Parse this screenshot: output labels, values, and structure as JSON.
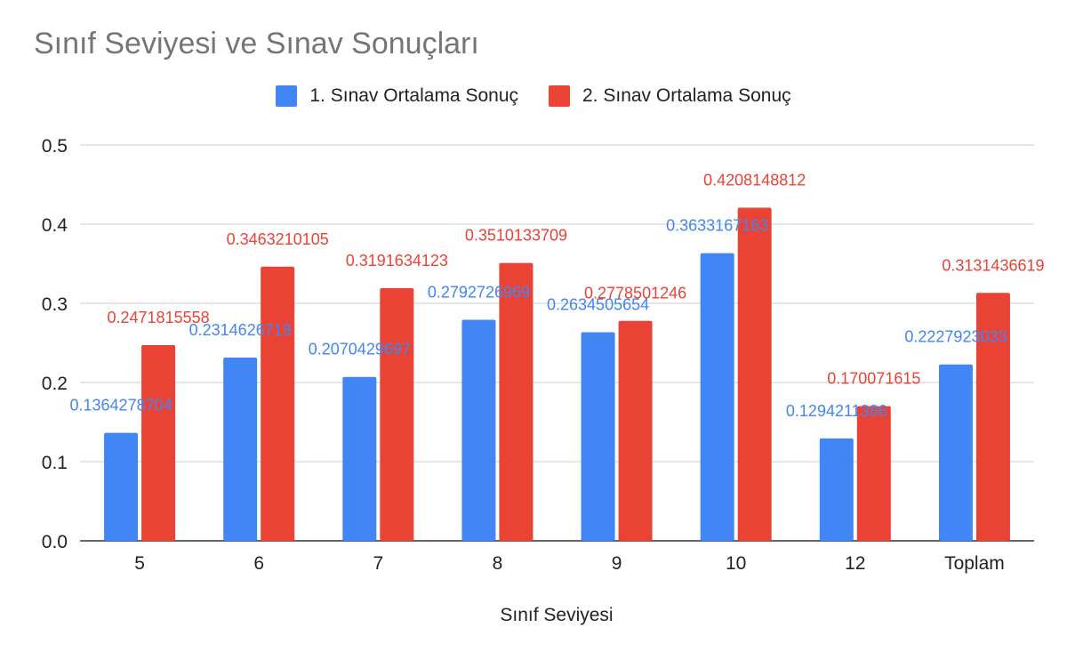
{
  "chart_data": {
    "type": "bar",
    "title": "Sınıf Seviyesi ve Sınav Sonuçları",
    "xlabel": "Sınıf Seviyesi",
    "ylabel": "",
    "categories": [
      "5",
      "6",
      "7",
      "8",
      "9",
      "10",
      "12",
      "Toplam"
    ],
    "series": [
      {
        "name": "1. Sınav Ortalama Sonuç",
        "color": "#4285f4",
        "values": [
          0.1364278704,
          0.2314626719,
          0.2070429697,
          0.2792726969,
          0.2634505654,
          0.3633167163,
          0.1294211386,
          0.2227923033
        ],
        "labels": [
          "0.1364278704",
          "0.2314626719",
          "0.2070429697",
          "0.2792726969",
          "0.2634505654",
          "0.3633167163",
          "0.1294211386",
          "0.2227923033"
        ]
      },
      {
        "name": "2. Sınav Ortalama Sonuç",
        "color": "#ea4335",
        "values": [
          0.2471815558,
          0.3463210105,
          0.3191634123,
          0.3510133709,
          0.2778501246,
          0.4208148812,
          0.170071615,
          0.3131436619
        ],
        "labels": [
          "0.2471815558",
          "0.3463210105",
          "0.3191634123",
          "0.3510133709",
          "0.2778501246",
          "0.4208148812",
          "0.170071615",
          "0.3131436619"
        ]
      }
    ],
    "ylim": [
      0,
      0.5
    ],
    "yticks": [
      "0.0",
      "0.1",
      "0.2",
      "0.3",
      "0.4",
      "0.5"
    ],
    "grid": true,
    "legend_position": "top"
  }
}
